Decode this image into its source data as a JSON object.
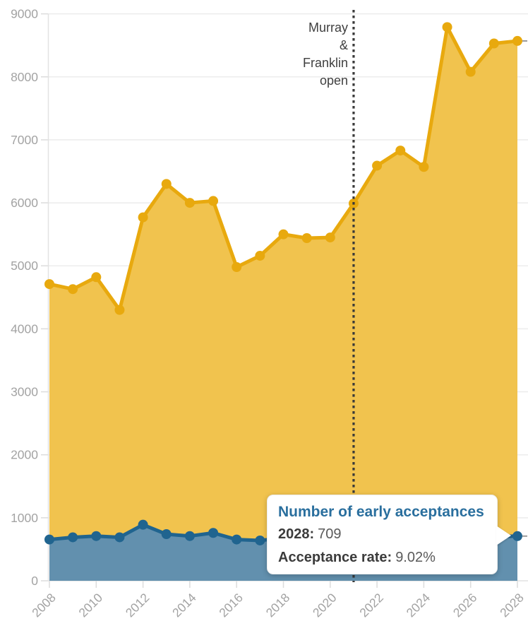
{
  "chart_data": {
    "type": "area",
    "x": [
      2008,
      2009,
      2010,
      2011,
      2012,
      2013,
      2014,
      2015,
      2016,
      2017,
      2018,
      2019,
      2020,
      2021,
      2022,
      2023,
      2024,
      2025,
      2026,
      2027,
      2028
    ],
    "series": [
      {
        "id": "early-applications",
        "name": "",
        "values": [
          4710,
          4630,
          4820,
          4300,
          5770,
          6300,
          6000,
          6030,
          4980,
          5160,
          5500,
          5440,
          5450,
          5990,
          6590,
          6830,
          6570,
          8790,
          8080,
          8530,
          8570
        ]
      },
      {
        "id": "early-acceptances",
        "name": "Number of early acceptances",
        "values": [
          655,
          690,
          710,
          690,
          890,
          740,
          710,
          760,
          655,
          640,
          680,
          700,
          710,
          730,
          750,
          740,
          720,
          730,
          710,
          700,
          709
        ]
      }
    ],
    "xlabel": "",
    "ylabel": "",
    "ylim": [
      0,
      9000
    ],
    "yticks": [
      0,
      1000,
      2000,
      3000,
      4000,
      5000,
      6000,
      7000,
      8000,
      9000
    ],
    "ytick_labels": [
      "0",
      "1000",
      "2000",
      "3000",
      "4000",
      "5000",
      "6000",
      "7000",
      "8000",
      "9000"
    ],
    "xticks": [
      2008,
      2010,
      2012,
      2014,
      2016,
      2018,
      2020,
      2022,
      2024,
      2026,
      2028
    ],
    "xtick_labels": [
      "2008",
      "2010",
      "2012",
      "2014",
      "2016",
      "2018",
      "2020",
      "2022",
      "2024",
      "2026",
      "2028"
    ],
    "grid": "horizontal",
    "legend": "none",
    "vline": {
      "x": 2021,
      "style": "dotted"
    },
    "annotation": {
      "lines": [
        "Murray",
        "&",
        "Franklin",
        "open"
      ],
      "anchor_x": 2021,
      "align": "right"
    }
  },
  "tooltip": {
    "title": "Number of early acceptances",
    "rows": [
      {
        "label": "2028:",
        "value": "709"
      },
      {
        "label": "Acceptance rate:",
        "value": "9.02%"
      }
    ]
  },
  "colors": {
    "yellow_line": "#E8A90E",
    "yellow_fill": "#F1C34E",
    "blue_line": "#20648F",
    "blue_fill": "#6290AE",
    "grid": "#ECECEC",
    "axis_line": "#E2E2E2",
    "tick": "#DCDCDC",
    "axis_label": "#A3A3A3",
    "vline": "#3A3A3A",
    "marker_dash": "#999999",
    "tooltip_title": "#2A6F9E",
    "tooltip_label": "#3B3B3B",
    "tooltip_value": "#5A5A5A",
    "annotation_text": "#3F3F3F"
  }
}
